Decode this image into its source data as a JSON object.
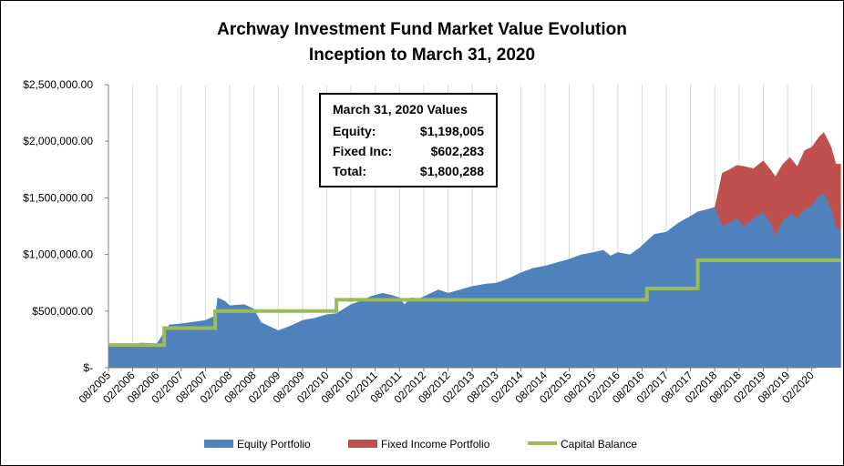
{
  "chart_data": {
    "type": "area",
    "title_lines": [
      "Archway Investment Fund Market Value Evolution",
      "Inception to March 31, 2020"
    ],
    "ylim": [
      0,
      2500000
    ],
    "y_ticks": [
      {
        "value": 0,
        "label": "$-"
      },
      {
        "value": 500000,
        "label": "$500,000.00"
      },
      {
        "value": 1000000,
        "label": "$1,000,000.00"
      },
      {
        "value": 1500000,
        "label": "$1,500,000.00"
      },
      {
        "value": 2000000,
        "label": "$2,000,000.00"
      },
      {
        "value": 2500000,
        "label": "$2,500,000.00"
      }
    ],
    "x_tick_labels": [
      "08/2005",
      "02/2006",
      "08/2006",
      "02/2007",
      "08/2007",
      "02/2008",
      "08/2008",
      "02/2009",
      "08/2009",
      "02/2010",
      "08/2010",
      "02/2011",
      "08/2011",
      "02/2012",
      "08/2012",
      "02/2013",
      "08/2013",
      "02/2014",
      "08/2014",
      "02/2015",
      "08/2015",
      "02/2016",
      "08/2016",
      "02/2017",
      "08/2017",
      "02/2018",
      "08/2018",
      "02/2019",
      "08/2019",
      "02/2020"
    ],
    "x_range": [
      0,
      29.2
    ],
    "grid": true,
    "legend_position": "bottom",
    "series": [
      {
        "name": "Equity Portfolio",
        "color": "#4f81bd",
        "points": [
          [
            0,
            200000
          ],
          [
            1,
            205000
          ],
          [
            1.3,
            220000
          ],
          [
            2,
            215000
          ],
          [
            2.5,
            380000
          ],
          [
            3,
            390000
          ],
          [
            3.5,
            405000
          ],
          [
            4,
            420000
          ],
          [
            4.4,
            460000
          ],
          [
            4.5,
            620000
          ],
          [
            4.8,
            590000
          ],
          [
            5,
            550000
          ],
          [
            5.6,
            560000
          ],
          [
            6,
            520000
          ],
          [
            6.3,
            400000
          ],
          [
            6.6,
            370000
          ],
          [
            7,
            330000
          ],
          [
            7.5,
            370000
          ],
          [
            8,
            420000
          ],
          [
            8.5,
            440000
          ],
          [
            9,
            470000
          ],
          [
            9.4,
            480000
          ],
          [
            9.7,
            520000
          ],
          [
            10,
            560000
          ],
          [
            10.4,
            590000
          ],
          [
            10.8,
            630000
          ],
          [
            11.3,
            660000
          ],
          [
            11.7,
            640000
          ],
          [
            12,
            620000
          ],
          [
            12.2,
            560000
          ],
          [
            12.5,
            620000
          ],
          [
            12.8,
            610000
          ],
          [
            13.2,
            650000
          ],
          [
            13.6,
            690000
          ],
          [
            14,
            660000
          ],
          [
            14.5,
            690000
          ],
          [
            15,
            720000
          ],
          [
            15.5,
            740000
          ],
          [
            16,
            750000
          ],
          [
            16.5,
            790000
          ],
          [
            17,
            840000
          ],
          [
            17.5,
            880000
          ],
          [
            18,
            900000
          ],
          [
            18.5,
            930000
          ],
          [
            19,
            960000
          ],
          [
            19.5,
            1000000
          ],
          [
            20,
            1020000
          ],
          [
            20.4,
            1040000
          ],
          [
            20.7,
            990000
          ],
          [
            21,
            1020000
          ],
          [
            21.5,
            1000000
          ],
          [
            21.9,
            1060000
          ],
          [
            22.2,
            1120000
          ],
          [
            22.5,
            1180000
          ],
          [
            23,
            1200000
          ],
          [
            23.5,
            1280000
          ],
          [
            24,
            1340000
          ],
          [
            24.3,
            1380000
          ],
          [
            24.7,
            1400000
          ],
          [
            25,
            1420000
          ],
          [
            25.3,
            1250000
          ],
          [
            25.6,
            1280000
          ],
          [
            25.9,
            1320000
          ],
          [
            26.2,
            1250000
          ],
          [
            26.6,
            1320000
          ],
          [
            27,
            1370000
          ],
          [
            27.3,
            1280000
          ],
          [
            27.5,
            1170000
          ],
          [
            27.8,
            1300000
          ],
          [
            28.1,
            1360000
          ],
          [
            28.4,
            1320000
          ],
          [
            28.7,
            1400000
          ],
          [
            29.0,
            1430000
          ],
          [
            29.3,
            1520000
          ],
          [
            29.5,
            1540000
          ],
          [
            29.8,
            1400000
          ],
          [
            30.0,
            1250000
          ],
          [
            30.2,
            1198005
          ]
        ]
      },
      {
        "name": "Fixed Income Portfolio",
        "color": "#c0504d",
        "points": [
          [
            25.0,
            1420000
          ],
          [
            25.3,
            1720000
          ],
          [
            25.6,
            1750000
          ],
          [
            25.9,
            1790000
          ],
          [
            26.2,
            1780000
          ],
          [
            26.6,
            1760000
          ],
          [
            27,
            1830000
          ],
          [
            27.3,
            1750000
          ],
          [
            27.5,
            1690000
          ],
          [
            27.8,
            1800000
          ],
          [
            28.1,
            1860000
          ],
          [
            28.4,
            1780000
          ],
          [
            28.7,
            1920000
          ],
          [
            29.0,
            1950000
          ],
          [
            29.3,
            2040000
          ],
          [
            29.5,
            2080000
          ],
          [
            29.8,
            1950000
          ],
          [
            30.0,
            1800000
          ],
          [
            30.2,
            1800288
          ]
        ]
      },
      {
        "name": "Capital Balance",
        "color": "#9bbb59",
        "points": [
          [
            0,
            200000
          ],
          [
            2.3,
            200000
          ],
          [
            2.3,
            350000
          ],
          [
            4.4,
            350000
          ],
          [
            4.4,
            500000
          ],
          [
            9.4,
            500000
          ],
          [
            9.4,
            600000
          ],
          [
            22.2,
            600000
          ],
          [
            22.2,
            700000
          ],
          [
            24.3,
            700000
          ],
          [
            24.3,
            950000
          ],
          [
            30.2,
            950000
          ]
        ]
      }
    ]
  },
  "annotation": {
    "title": "March 31, 2020 Values",
    "rows": [
      {
        "label": "Equity:",
        "value": "$1,198,005"
      },
      {
        "label": "Fixed Inc:",
        "value": "$602,283"
      },
      {
        "label": "Total:",
        "value": "$1,800,288"
      }
    ]
  }
}
